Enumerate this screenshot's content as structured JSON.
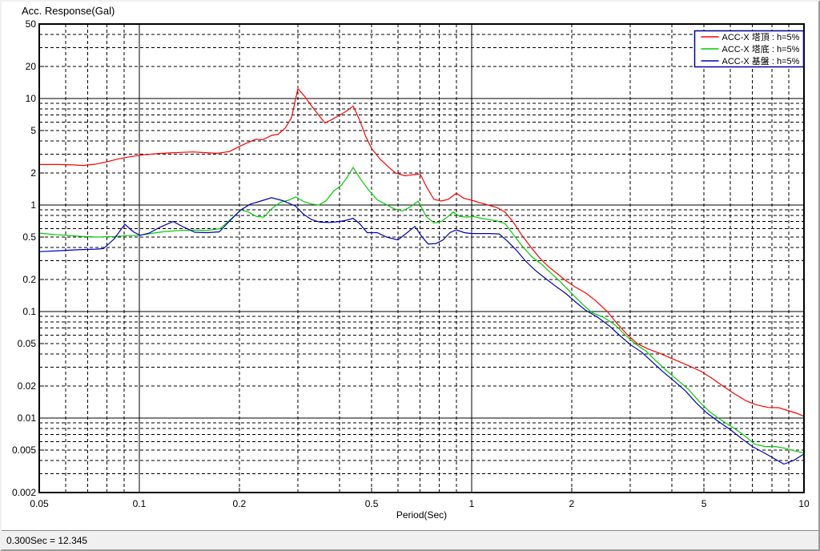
{
  "statusbar": {
    "text": "0.300Sec = 12.345"
  },
  "chart_data": {
    "type": "line",
    "title": "Acc. Response(Gal)",
    "xlabel": "Period(Sec)",
    "ylabel": "Acc. Response(Gal)",
    "x_scale": "log",
    "y_scale": "log",
    "xlim": [
      0.05,
      10
    ],
    "ylim": [
      0.002,
      50
    ],
    "grid": "log major solid, minor dashed",
    "x_tick_values": [
      0.05,
      0.1,
      0.2,
      0.5,
      1,
      2,
      5,
      10
    ],
    "x_tick_labels": [
      "0.05",
      "0.1",
      "0.2",
      "0.5",
      "1",
      "2",
      "5",
      "10"
    ],
    "y_tick_values": [
      50,
      20,
      10,
      5,
      2,
      1,
      0.5,
      0.2,
      0.1,
      0.05,
      0.02,
      0.01,
      0.005,
      0.002
    ],
    "y_tick_labels": [
      "50",
      "20",
      "10",
      "5",
      "2",
      "1",
      "0.5",
      "0.2",
      "0.1",
      "0.05",
      "0.02",
      "0.01",
      "0.005",
      "0.002"
    ],
    "solid_x_gridlines": [
      0.1,
      1
    ],
    "solid_y_gridlines": [
      10,
      1,
      0.1,
      0.01
    ],
    "legend": {
      "position": "top-right",
      "border_color": "#0000a0",
      "background": "#ffffff"
    },
    "cursor_readout": {
      "period_sec": "0.300",
      "value": "12.345"
    },
    "series": [
      {
        "name": "ACC-X 塔頂 : h=5%",
        "color": "#ff0000",
        "points": [
          [
            0.05,
            2.4
          ],
          [
            0.057,
            2.4
          ],
          [
            0.063,
            2.38
          ],
          [
            0.068,
            2.35
          ],
          [
            0.074,
            2.42
          ],
          [
            0.08,
            2.55
          ],
          [
            0.087,
            2.72
          ],
          [
            0.095,
            2.86
          ],
          [
            0.103,
            2.96
          ],
          [
            0.112,
            3.03
          ],
          [
            0.122,
            3.08
          ],
          [
            0.133,
            3.12
          ],
          [
            0.145,
            3.15
          ],
          [
            0.158,
            3.1
          ],
          [
            0.172,
            3.06
          ],
          [
            0.187,
            3.18
          ],
          [
            0.2,
            3.55
          ],
          [
            0.212,
            3.85
          ],
          [
            0.224,
            4.15
          ],
          [
            0.235,
            4.1
          ],
          [
            0.25,
            4.5
          ],
          [
            0.262,
            4.62
          ],
          [
            0.275,
            5.3
          ],
          [
            0.287,
            6.6
          ],
          [
            0.3,
            12.345
          ],
          [
            0.315,
            10.4
          ],
          [
            0.33,
            8.5
          ],
          [
            0.345,
            7.1
          ],
          [
            0.362,
            5.9
          ],
          [
            0.378,
            6.3
          ],
          [
            0.4,
            6.95
          ],
          [
            0.42,
            7.6
          ],
          [
            0.44,
            8.5
          ],
          [
            0.46,
            6.3
          ],
          [
            0.48,
            4.4
          ],
          [
            0.5,
            3.4
          ],
          [
            0.53,
            2.7
          ],
          [
            0.56,
            2.3
          ],
          [
            0.59,
            2.0
          ],
          [
            0.63,
            1.88
          ],
          [
            0.67,
            1.93
          ],
          [
            0.7,
            1.96
          ],
          [
            0.73,
            1.5
          ],
          [
            0.77,
            1.13
          ],
          [
            0.81,
            1.09
          ],
          [
            0.85,
            1.13
          ],
          [
            0.9,
            1.29
          ],
          [
            0.945,
            1.16
          ],
          [
            1.0,
            1.11
          ],
          [
            1.06,
            1.05
          ],
          [
            1.12,
            1.0
          ],
          [
            1.19,
            0.95
          ],
          [
            1.26,
            0.86
          ],
          [
            1.33,
            0.7
          ],
          [
            1.41,
            0.53
          ],
          [
            1.5,
            0.41
          ],
          [
            1.6,
            0.32
          ],
          [
            1.7,
            0.265
          ],
          [
            1.8,
            0.23
          ],
          [
            1.92,
            0.195
          ],
          [
            2.05,
            0.17
          ],
          [
            2.2,
            0.15
          ],
          [
            2.35,
            0.128
          ],
          [
            2.56,
            0.1
          ],
          [
            2.75,
            0.076
          ],
          [
            2.95,
            0.06
          ],
          [
            3.15,
            0.05
          ],
          [
            3.4,
            0.0445
          ],
          [
            3.65,
            0.041
          ],
          [
            3.9,
            0.0375
          ],
          [
            4.2,
            0.034
          ],
          [
            4.55,
            0.0305
          ],
          [
            4.9,
            0.0275
          ],
          [
            5.3,
            0.0235
          ],
          [
            5.7,
            0.02
          ],
          [
            6.2,
            0.0168
          ],
          [
            6.7,
            0.0145
          ],
          [
            7.2,
            0.0133
          ],
          [
            7.8,
            0.0126
          ],
          [
            8.4,
            0.0125
          ],
          [
            9.0,
            0.0117
          ],
          [
            9.5,
            0.0111
          ],
          [
            10,
            0.0104
          ]
        ]
      },
      {
        "name": "ACC-X 塔底 : h=5%",
        "color": "#00cc00",
        "points": [
          [
            0.05,
            0.545
          ],
          [
            0.057,
            0.525
          ],
          [
            0.065,
            0.51
          ],
          [
            0.074,
            0.5
          ],
          [
            0.083,
            0.505
          ],
          [
            0.092,
            0.515
          ],
          [
            0.1,
            0.52
          ],
          [
            0.11,
            0.545
          ],
          [
            0.12,
            0.565
          ],
          [
            0.133,
            0.578
          ],
          [
            0.147,
            0.582
          ],
          [
            0.16,
            0.578
          ],
          [
            0.175,
            0.6
          ],
          [
            0.188,
            0.73
          ],
          [
            0.202,
            0.9
          ],
          [
            0.213,
            0.86
          ],
          [
            0.225,
            0.78
          ],
          [
            0.237,
            0.77
          ],
          [
            0.25,
            0.92
          ],
          [
            0.266,
            1.06
          ],
          [
            0.281,
            1.11
          ],
          [
            0.296,
            1.19
          ],
          [
            0.312,
            1.08
          ],
          [
            0.33,
            1.02
          ],
          [
            0.347,
            1.0
          ],
          [
            0.365,
            1.1
          ],
          [
            0.385,
            1.36
          ],
          [
            0.405,
            1.52
          ],
          [
            0.422,
            1.82
          ],
          [
            0.44,
            2.25
          ],
          [
            0.465,
            1.72
          ],
          [
            0.49,
            1.38
          ],
          [
            0.52,
            1.12
          ],
          [
            0.55,
            1.02
          ],
          [
            0.585,
            0.92
          ],
          [
            0.62,
            0.88
          ],
          [
            0.655,
            0.96
          ],
          [
            0.69,
            1.09
          ],
          [
            0.73,
            0.78
          ],
          [
            0.77,
            0.68
          ],
          [
            0.81,
            0.7
          ],
          [
            0.85,
            0.78
          ],
          [
            0.88,
            0.86
          ],
          [
            0.92,
            0.78
          ],
          [
            0.965,
            0.77
          ],
          [
            1.01,
            0.78
          ],
          [
            1.07,
            0.75
          ],
          [
            1.13,
            0.73
          ],
          [
            1.19,
            0.71
          ],
          [
            1.26,
            0.67
          ],
          [
            1.34,
            0.52
          ],
          [
            1.43,
            0.4
          ],
          [
            1.52,
            0.325
          ],
          [
            1.62,
            0.28
          ],
          [
            1.72,
            0.235
          ],
          [
            1.85,
            0.19
          ],
          [
            2.0,
            0.148
          ],
          [
            2.15,
            0.118
          ],
          [
            2.3,
            0.098
          ],
          [
            2.5,
            0.088
          ],
          [
            2.7,
            0.075
          ],
          [
            2.9,
            0.06
          ],
          [
            3.1,
            0.05
          ],
          [
            3.35,
            0.0425
          ],
          [
            3.6,
            0.034
          ],
          [
            3.85,
            0.028
          ],
          [
            4.15,
            0.023
          ],
          [
            4.5,
            0.0185
          ],
          [
            4.85,
            0.0142
          ],
          [
            5.2,
            0.0115
          ],
          [
            5.6,
            0.0097
          ],
          [
            6.1,
            0.0082
          ],
          [
            6.6,
            0.0069
          ],
          [
            7.1,
            0.0057
          ],
          [
            7.65,
            0.0054
          ],
          [
            8.2,
            0.0054
          ],
          [
            8.8,
            0.0052
          ],
          [
            9.4,
            0.0049
          ],
          [
            10,
            0.0047
          ]
        ]
      },
      {
        "name": "ACC-X 基盤 : h=5%",
        "color": "#0000bb",
        "points": [
          [
            0.05,
            0.365
          ],
          [
            0.057,
            0.372
          ],
          [
            0.065,
            0.38
          ],
          [
            0.074,
            0.385
          ],
          [
            0.078,
            0.39
          ],
          [
            0.084,
            0.48
          ],
          [
            0.0905,
            0.66
          ],
          [
            0.096,
            0.56
          ],
          [
            0.1005,
            0.52
          ],
          [
            0.107,
            0.545
          ],
          [
            0.115,
            0.615
          ],
          [
            0.1265,
            0.7
          ],
          [
            0.136,
            0.62
          ],
          [
            0.147,
            0.555
          ],
          [
            0.16,
            0.55
          ],
          [
            0.174,
            0.56
          ],
          [
            0.188,
            0.72
          ],
          [
            0.202,
            0.9
          ],
          [
            0.216,
            1.02
          ],
          [
            0.23,
            1.08
          ],
          [
            0.25,
            1.17
          ],
          [
            0.27,
            1.1
          ],
          [
            0.295,
            0.98
          ],
          [
            0.312,
            0.82
          ],
          [
            0.33,
            0.73
          ],
          [
            0.35,
            0.69
          ],
          [
            0.375,
            0.685
          ],
          [
            0.4,
            0.7
          ],
          [
            0.42,
            0.72
          ],
          [
            0.44,
            0.75
          ],
          [
            0.46,
            0.67
          ],
          [
            0.485,
            0.55
          ],
          [
            0.52,
            0.55
          ],
          [
            0.555,
            0.5
          ],
          [
            0.6,
            0.47
          ],
          [
            0.64,
            0.55
          ],
          [
            0.675,
            0.63
          ],
          [
            0.71,
            0.5
          ],
          [
            0.74,
            0.43
          ],
          [
            0.78,
            0.435
          ],
          [
            0.82,
            0.47
          ],
          [
            0.86,
            0.55
          ],
          [
            0.9,
            0.585
          ],
          [
            0.95,
            0.55
          ],
          [
            1.0,
            0.54
          ],
          [
            1.06,
            0.54
          ],
          [
            1.13,
            0.54
          ],
          [
            1.21,
            0.535
          ],
          [
            1.28,
            0.46
          ],
          [
            1.36,
            0.38
          ],
          [
            1.45,
            0.3
          ],
          [
            1.55,
            0.245
          ],
          [
            1.65,
            0.21
          ],
          [
            1.78,
            0.175
          ],
          [
            1.92,
            0.148
          ],
          [
            2.06,
            0.122
          ],
          [
            2.2,
            0.103
          ],
          [
            2.4,
            0.088
          ],
          [
            2.6,
            0.073
          ],
          [
            2.8,
            0.059
          ],
          [
            3.0,
            0.049
          ],
          [
            3.25,
            0.0415
          ],
          [
            3.5,
            0.0335
          ],
          [
            3.75,
            0.0275
          ],
          [
            4.05,
            0.0225
          ],
          [
            4.4,
            0.018
          ],
          [
            4.75,
            0.0138
          ],
          [
            5.1,
            0.0112
          ],
          [
            5.5,
            0.0094
          ],
          [
            6.0,
            0.0078
          ],
          [
            6.5,
            0.0064
          ],
          [
            7.0,
            0.0054
          ],
          [
            7.6,
            0.0047
          ],
          [
            8.1,
            0.0042
          ],
          [
            8.7,
            0.0037
          ],
          [
            9.3,
            0.004
          ],
          [
            10,
            0.0046
          ]
        ]
      }
    ]
  }
}
